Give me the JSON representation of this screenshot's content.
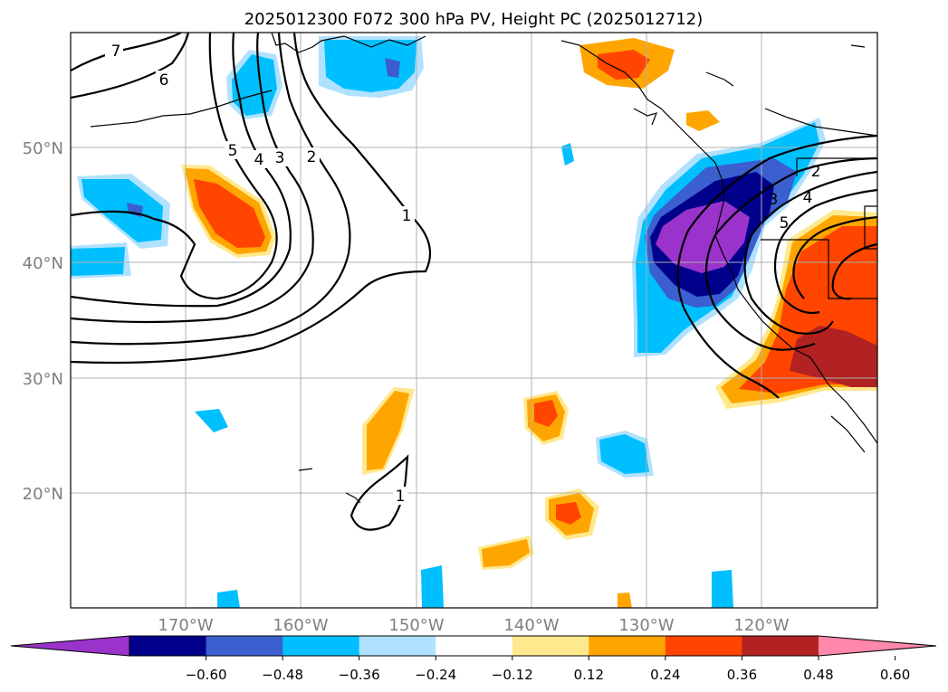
{
  "title": "2025012300 F072 300 hPa PV, Height PC (2025012712)",
  "map": {
    "lon_ticks": [
      "170°W",
      "160°W",
      "150°W",
      "140°W",
      "130°W",
      "120°W"
    ],
    "lat_ticks": [
      "50°N",
      "40°N",
      "30°N",
      "20°N"
    ],
    "contour_labels": [
      "7",
      "6",
      "5",
      "4",
      "3",
      "2",
      "1",
      "1",
      "2",
      "3",
      "4",
      "5"
    ],
    "colors": {
      "neg_060": "#9933cc",
      "neg_048": "#00008b",
      "neg_036": "#3b5fce",
      "neg_024": "#00bfff",
      "neg_012": "#b0e2ff",
      "pos_012": "#ffe98f",
      "pos_024": "#ffa500",
      "pos_036": "#ff4500",
      "pos_048": "#b22222",
      "pos_060": "#ff88aa"
    }
  },
  "colorbar": {
    "ticks": [
      "−0.60",
      "−0.48",
      "−0.36",
      "−0.24",
      "−0.12",
      "0.12",
      "0.24",
      "0.36",
      "0.48",
      "0.60"
    ],
    "colors": [
      "#9933cc",
      "#00008b",
      "#3b5fce",
      "#00bfff",
      "#b0e2ff",
      "#ffffff",
      "#ffe98f",
      "#ffa500",
      "#ff4500",
      "#b22222",
      "#ff88aa"
    ]
  }
}
